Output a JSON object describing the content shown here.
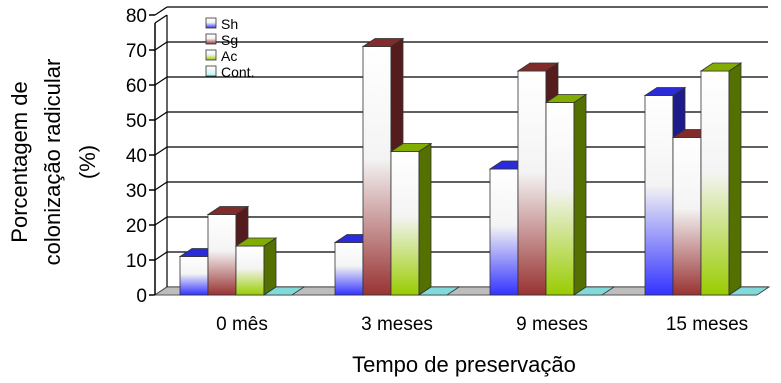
{
  "chart_data": {
    "type": "bar",
    "title": "",
    "xlabel": "Tempo de preservação",
    "ylabel_lines": [
      "Porcentagem de",
      "colonização radicular",
      "(%)"
    ],
    "ylim": [
      0,
      80
    ],
    "yticks": [
      "0",
      "10",
      "20",
      "30",
      "40",
      "50",
      "60",
      "70",
      "80"
    ],
    "grid": true,
    "legend_position": "top-left",
    "categories": [
      "0 mês",
      "3 meses",
      "9 meses",
      "15 meses"
    ],
    "series": [
      {
        "name": "Sh",
        "values": [
          11,
          15,
          36,
          57
        ],
        "color": "#3333ff"
      },
      {
        "name": "Sg",
        "values": [
          23,
          71,
          64,
          45
        ],
        "color": "#993333"
      },
      {
        "name": "Ac",
        "values": [
          14,
          41,
          55,
          64
        ],
        "color": "#99cc00"
      },
      {
        "name": "Cont.",
        "values": [
          0,
          0,
          0,
          0
        ],
        "color": "#99ffff"
      }
    ]
  }
}
